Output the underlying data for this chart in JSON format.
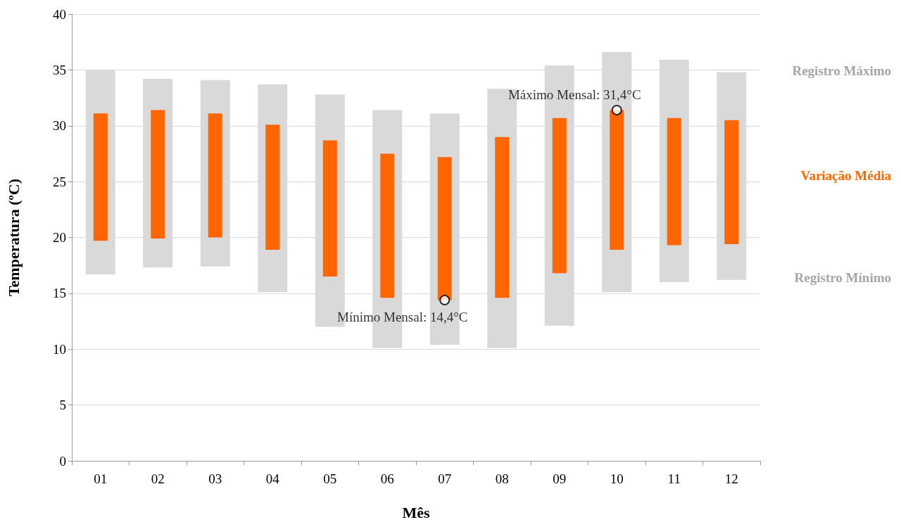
{
  "chart_data": {
    "type": "bar",
    "xlabel": "Mês",
    "ylabel": "Temperatura (ºC)",
    "categories": [
      "01",
      "02",
      "03",
      "04",
      "05",
      "06",
      "07",
      "08",
      "09",
      "10",
      "11",
      "12"
    ],
    "series": [
      {
        "color": "#d9d9d9",
        "base": [
          16.7,
          17.3,
          17.4,
          15.1,
          12.0,
          10.1,
          10.4,
          10.1,
          12.1,
          15.1,
          16.0,
          16.2
        ],
        "values": [
          18.3,
          16.9,
          16.7,
          18.6,
          20.8,
          21.3,
          20.7,
          23.2,
          23.3,
          21.5,
          19.9,
          18.6
        ]
      },
      {
        "color": "#ff6600",
        "base": [
          19.7,
          19.9,
          20.0,
          18.9,
          16.5,
          14.6,
          14.4,
          14.6,
          16.8,
          18.9,
          19.3,
          19.4
        ],
        "values": [
          11.4,
          11.5,
          11.1,
          11.2,
          12.2,
          12.9,
          12.8,
          14.4,
          13.9,
          12.5,
          11.4,
          11.1
        ]
      }
    ],
    "ylim": [
      0,
      40
    ],
    "yticks": [
      0,
      5,
      10,
      15,
      20,
      25,
      30,
      35,
      40
    ],
    "grid": "y",
    "annotations": [
      "Registro Máximo",
      "Variação Média",
      "Registro Mínimo",
      {
        "text": "Máximo Mensal: 31,4°C",
        "x": "10",
        "y": 31.4
      },
      {
        "text": "Mínimo Mensal: 14,4°C",
        "x": "07",
        "y": 14.4
      }
    ]
  }
}
